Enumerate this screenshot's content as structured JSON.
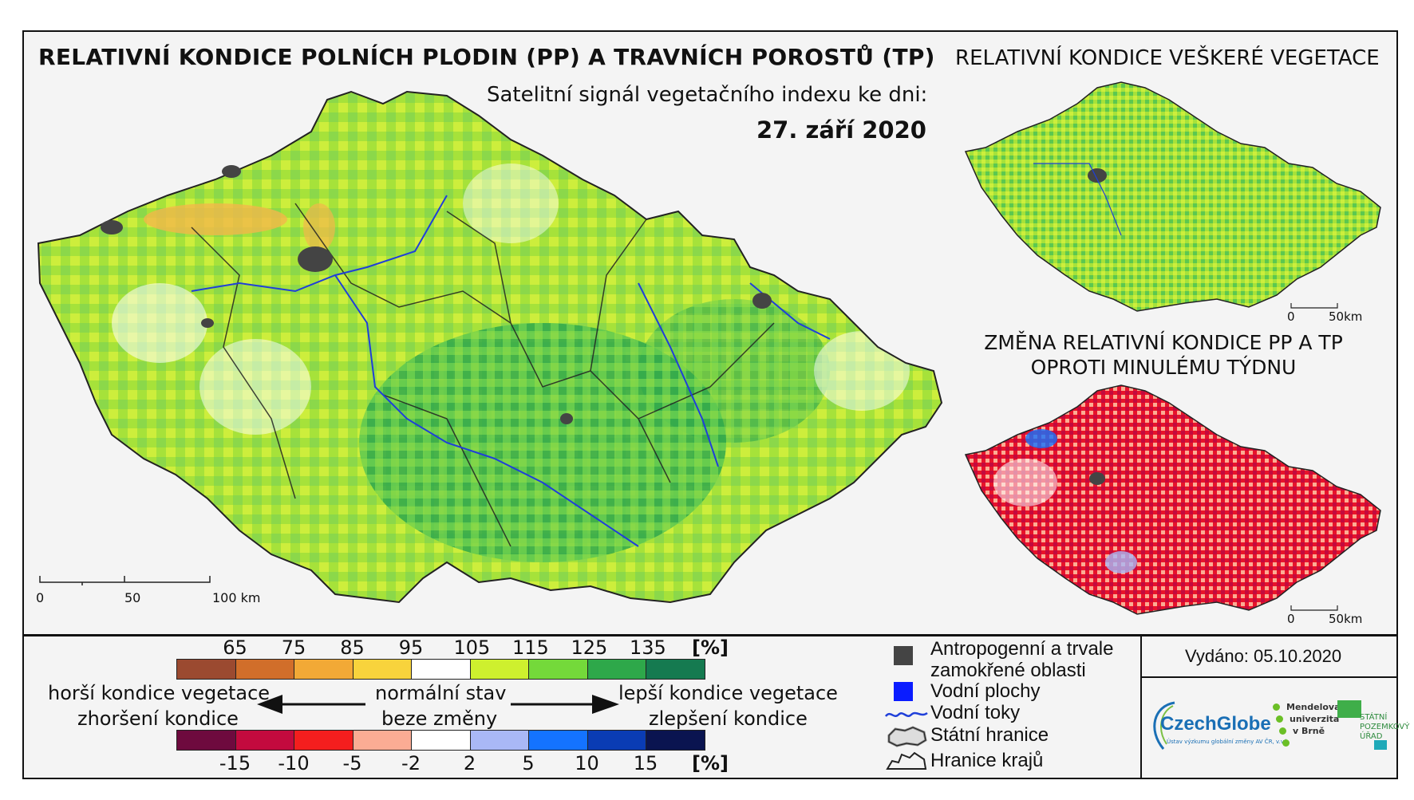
{
  "header": {
    "main_title": "RELATIVNÍ KONDICE POLNÍCH PLODIN (PP) A TRAVNÍCH POROSTŮ (TP)",
    "subtitle": "Satelitní signál vegetačního indexu ke dni:",
    "date": "27. září 2020",
    "right_title": "RELATIVNÍ KONDICE VEŠKERÉ VEGETACE",
    "change_title_line1": "ZMĚNA RELATIVNÍ KONDICE PP A TP",
    "change_title_line2": "OPROTI MINULÉMU TÝDNU"
  },
  "main_scale": {
    "zero": "0",
    "mid": "50",
    "end": "100 km"
  },
  "inset1_scale": {
    "zero": "0",
    "end": "50km"
  },
  "inset2_scale": {
    "zero": "0",
    "end": "50km"
  },
  "legend_condition": {
    "unit": "[%]",
    "ticks": [
      "65",
      "75",
      "85",
      "95",
      "105",
      "115",
      "125",
      "135"
    ],
    "colors": [
      "#9b4a30",
      "#d16e2a",
      "#f2a936",
      "#f8d33c",
      "#ffffff",
      "#cef02e",
      "#74d93a",
      "#2ea84a",
      "#157a50"
    ]
  },
  "legend_change": {
    "unit": "[%]",
    "ticks": [
      "-15",
      "-10",
      "-5",
      "-2",
      "2",
      "5",
      "10",
      "15"
    ],
    "colors": [
      "#6e0a3e",
      "#c30a3e",
      "#f41e1e",
      "#fbac94",
      "#ffffff",
      "#a9b8f6",
      "#1473ff",
      "#0a3cb4",
      "#0a1450"
    ]
  },
  "legend_text": {
    "worse": "horší kondice vegetace",
    "worse_change": "zhoršení kondice",
    "normal": "normální stav",
    "normal_change": "beze změny",
    "better": "lepší kondice vegetace",
    "better_change": "zlepšení kondice"
  },
  "symbol_legend": {
    "anthropogenic_1": "Antropogenní a trvale",
    "anthropogenic_2": "zamokřené oblasti",
    "water": "Vodní plochy",
    "rivers": "Vodní toky",
    "border": "Státní hranice",
    "regions": "Hranice krajů"
  },
  "issued": "Vydáno: 05.10.2020",
  "logos": {
    "czechglobe": "CzechGlobe",
    "czechglobe_sub": "Ústav výzkumu globální změny AV ČR, v.v.i.",
    "mendel_1": "Mendelova",
    "mendel_2": "univerzita",
    "mendel_3": "v Brně",
    "spu_1": "STÁTNÍ",
    "spu_2": "POZEMKOVÝ",
    "spu_3": "ÚŘAD"
  },
  "colors": {
    "map_main": "#a6e23a",
    "map_dark": "#3cb455",
    "map_change": "#e8132a",
    "anthropogenic": "#444444",
    "river": "#1f3fd9",
    "water": "#0a1cff"
  }
}
